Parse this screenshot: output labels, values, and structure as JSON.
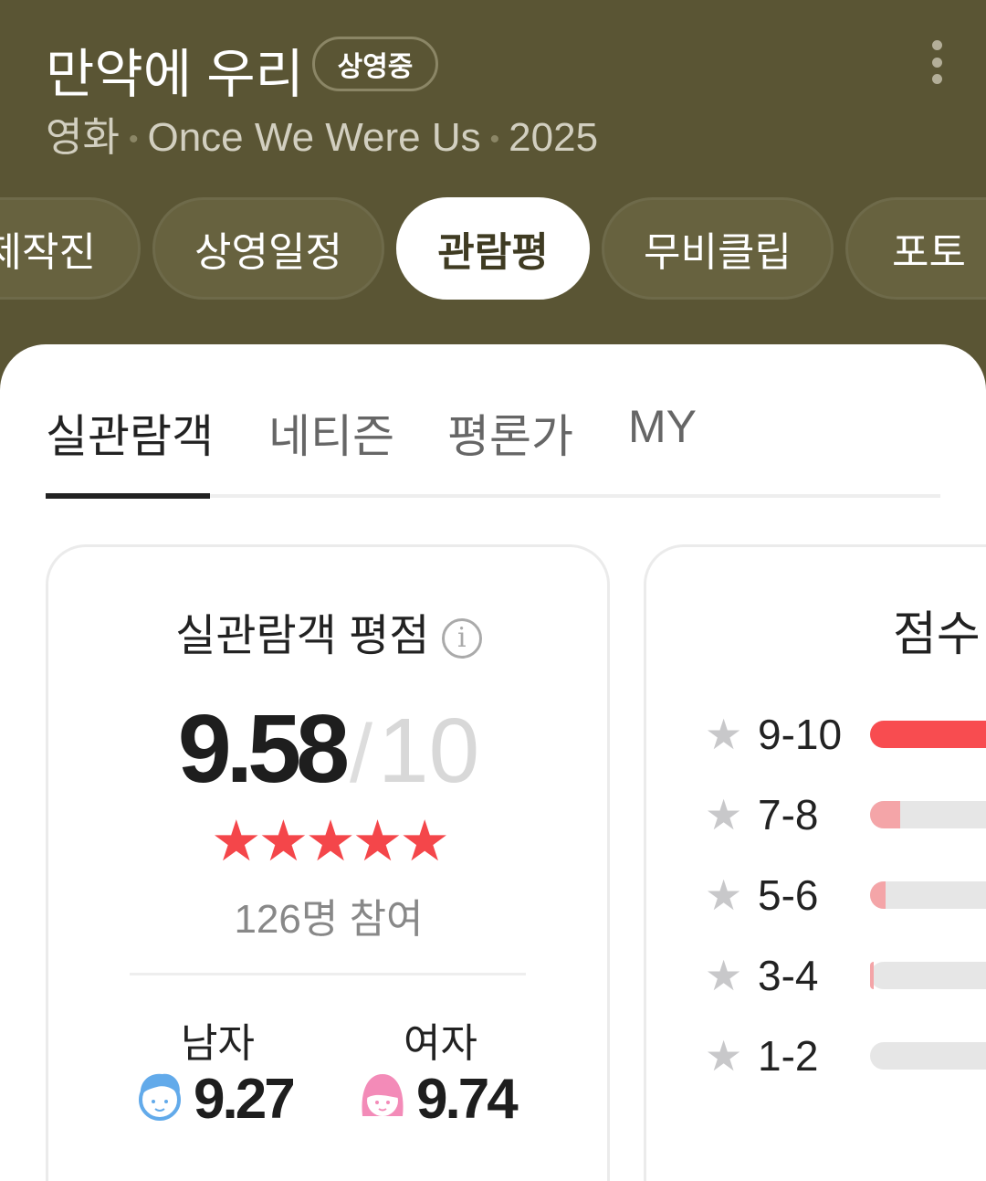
{
  "header": {
    "title": "만약에 우리",
    "status_badge": "상영중",
    "category": "영화",
    "english_title": "Once We Were Us",
    "year": "2025",
    "more_icon": "more-vertical-icon"
  },
  "nav_tabs": [
    {
      "label": "제작진",
      "active": false
    },
    {
      "label": "상영일정",
      "active": false
    },
    {
      "label": "관람평",
      "active": true
    },
    {
      "label": "무비클립",
      "active": false
    },
    {
      "label": "포토",
      "active": false
    }
  ],
  "review_tabs": [
    {
      "label": "실관람객",
      "active": true
    },
    {
      "label": "네티즌",
      "active": false
    },
    {
      "label": "평론가",
      "active": false
    },
    {
      "label": "MY",
      "active": false
    }
  ],
  "rating_card": {
    "title": "실관람객 평점",
    "info_icon": "info-icon",
    "score": "9.58",
    "separator": "/",
    "max": "10",
    "stars": "★★★★★",
    "star_level": 5,
    "participants": "126명 참여",
    "male": {
      "label": "남자",
      "score": "9.27",
      "icon": "male-face-icon",
      "color": "#62aaea"
    },
    "female": {
      "label": "여자",
      "score": "9.74",
      "icon": "female-face-icon",
      "color": "#f38bb8"
    }
  },
  "distribution_card": {
    "title": "점수",
    "rows": [
      {
        "label": "9-10",
        "percent": 85,
        "color": "#f84c50"
      },
      {
        "label": "7-8",
        "percent": 10,
        "color": "#f4a5a8"
      },
      {
        "label": "5-6",
        "percent": 5,
        "color": "#f4a5a8"
      },
      {
        "label": "3-4",
        "percent": 1,
        "color": "#f4a5a8"
      },
      {
        "label": "1-2",
        "percent": 0,
        "color": "#f4a5a8"
      }
    ]
  },
  "colors": {
    "header_bg": "#5a5534",
    "accent_red": "#f4464a",
    "bar_track": "#e6e6e6"
  }
}
